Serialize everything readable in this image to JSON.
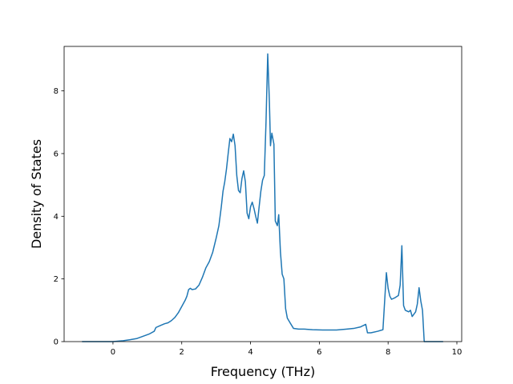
{
  "chart_data": {
    "type": "line",
    "title": "",
    "xlabel": "Frequency (THz)",
    "ylabel": "Density of States",
    "xlim": [
      -1.42,
      10.14
    ],
    "ylim": [
      0,
      9.42
    ],
    "xticks": [
      0,
      2,
      4,
      6,
      8,
      10
    ],
    "xtick_labels": [
      "0",
      "2",
      "4",
      "6",
      "8",
      "10"
    ],
    "yticks": [
      0,
      2,
      4,
      6,
      8
    ],
    "ytick_labels": [
      "0",
      "2",
      "4",
      "6",
      "8"
    ],
    "grid": false,
    "series": [
      {
        "name": "",
        "color": "#1f77b4",
        "points": [
          [
            -0.9,
            0.0
          ],
          [
            -0.3,
            0.0
          ],
          [
            0.0,
            0.0
          ],
          [
            0.3,
            0.03
          ],
          [
            0.5,
            0.06
          ],
          [
            0.7,
            0.1
          ],
          [
            0.9,
            0.18
          ],
          [
            1.05,
            0.24
          ],
          [
            1.2,
            0.33
          ],
          [
            1.25,
            0.45
          ],
          [
            1.35,
            0.5
          ],
          [
            1.5,
            0.57
          ],
          [
            1.6,
            0.6
          ],
          [
            1.7,
            0.67
          ],
          [
            1.8,
            0.77
          ],
          [
            1.9,
            0.92
          ],
          [
            2.0,
            1.12
          ],
          [
            2.1,
            1.32
          ],
          [
            2.15,
            1.45
          ],
          [
            2.2,
            1.66
          ],
          [
            2.25,
            1.7
          ],
          [
            2.3,
            1.66
          ],
          [
            2.4,
            1.68
          ],
          [
            2.5,
            1.8
          ],
          [
            2.6,
            2.05
          ],
          [
            2.7,
            2.35
          ],
          [
            2.8,
            2.55
          ],
          [
            2.9,
            2.85
          ],
          [
            3.0,
            3.3
          ],
          [
            3.08,
            3.7
          ],
          [
            3.15,
            4.3
          ],
          [
            3.2,
            4.8
          ],
          [
            3.25,
            5.1
          ],
          [
            3.3,
            5.5
          ],
          [
            3.35,
            6.0
          ],
          [
            3.4,
            6.48
          ],
          [
            3.45,
            6.38
          ],
          [
            3.5,
            6.62
          ],
          [
            3.55,
            6.25
          ],
          [
            3.6,
            5.3
          ],
          [
            3.65,
            4.82
          ],
          [
            3.7,
            4.75
          ],
          [
            3.75,
            5.2
          ],
          [
            3.8,
            5.45
          ],
          [
            3.85,
            5.1
          ],
          [
            3.9,
            4.1
          ],
          [
            3.95,
            3.92
          ],
          [
            4.0,
            4.3
          ],
          [
            4.05,
            4.45
          ],
          [
            4.1,
            4.25
          ],
          [
            4.15,
            4.0
          ],
          [
            4.2,
            3.78
          ],
          [
            4.25,
            4.3
          ],
          [
            4.3,
            4.8
          ],
          [
            4.35,
            5.15
          ],
          [
            4.4,
            5.3
          ],
          [
            4.45,
            7.0
          ],
          [
            4.5,
            9.18
          ],
          [
            4.55,
            7.6
          ],
          [
            4.58,
            6.25
          ],
          [
            4.62,
            6.65
          ],
          [
            4.68,
            6.3
          ],
          [
            4.72,
            3.85
          ],
          [
            4.78,
            3.7
          ],
          [
            4.82,
            4.05
          ],
          [
            4.87,
            2.85
          ],
          [
            4.92,
            2.15
          ],
          [
            4.97,
            2.0
          ],
          [
            5.02,
            1.05
          ],
          [
            5.07,
            0.75
          ],
          [
            5.15,
            0.6
          ],
          [
            5.25,
            0.42
          ],
          [
            5.4,
            0.4
          ],
          [
            5.55,
            0.4
          ],
          [
            5.8,
            0.38
          ],
          [
            6.1,
            0.37
          ],
          [
            6.5,
            0.37
          ],
          [
            6.8,
            0.4
          ],
          [
            7.0,
            0.42
          ],
          [
            7.2,
            0.47
          ],
          [
            7.35,
            0.55
          ],
          [
            7.4,
            0.28
          ],
          [
            7.5,
            0.28
          ],
          [
            7.7,
            0.33
          ],
          [
            7.85,
            0.38
          ],
          [
            7.9,
            1.3
          ],
          [
            7.95,
            2.2
          ],
          [
            8.0,
            1.7
          ],
          [
            8.05,
            1.45
          ],
          [
            8.1,
            1.35
          ],
          [
            8.2,
            1.4
          ],
          [
            8.3,
            1.47
          ],
          [
            8.35,
            1.8
          ],
          [
            8.4,
            3.06
          ],
          [
            8.45,
            1.15
          ],
          [
            8.5,
            1.0
          ],
          [
            8.6,
            0.95
          ],
          [
            8.65,
            1.0
          ],
          [
            8.7,
            0.8
          ],
          [
            8.8,
            0.95
          ],
          [
            8.85,
            1.2
          ],
          [
            8.9,
            1.72
          ],
          [
            8.95,
            1.3
          ],
          [
            9.0,
            1.0
          ],
          [
            9.05,
            0.0
          ],
          [
            9.5,
            0.0
          ],
          [
            9.6,
            0.0
          ]
        ]
      }
    ]
  }
}
